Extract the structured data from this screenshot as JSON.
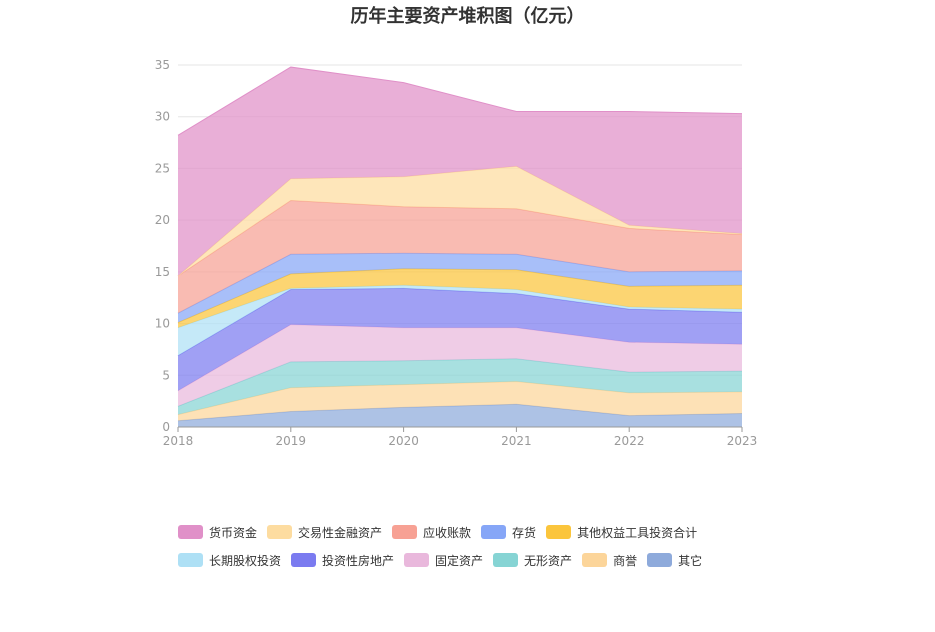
{
  "chart_data": {
    "type": "area",
    "title": "历年主要资产堆积图（亿元）",
    "stacked": true,
    "x": [
      "2018",
      "2019",
      "2020",
      "2021",
      "2022",
      "2023"
    ],
    "ylim": [
      0,
      35
    ],
    "yticks": [
      0,
      5,
      10,
      15,
      20,
      25,
      30,
      35
    ],
    "grid": true,
    "legend_position": "bottom",
    "series": [
      {
        "name": "其它",
        "color": "#8eaadb",
        "values": [
          0.6,
          1.5,
          1.9,
          2.2,
          1.1,
          1.3
        ]
      },
      {
        "name": "商誉",
        "color": "#fcd59a",
        "values": [
          0.6,
          2.3,
          2.2,
          2.2,
          2.2,
          2.1
        ]
      },
      {
        "name": "无形资产",
        "color": "#86d4d4",
        "values": [
          0.8,
          2.5,
          2.3,
          2.2,
          2.0,
          2.0
        ]
      },
      {
        "name": "固定资产",
        "color": "#e9b8dc",
        "values": [
          1.5,
          3.6,
          3.2,
          3.0,
          2.9,
          2.6
        ]
      },
      {
        "name": "投资性房地产",
        "color": "#7b7bf0",
        "values": [
          3.4,
          3.4,
          3.8,
          3.3,
          3.2,
          3.1
        ]
      },
      {
        "name": "长期股权投资",
        "color": "#aee0f5",
        "values": [
          2.7,
          0.1,
          0.3,
          0.4,
          0.2,
          0.3
        ]
      },
      {
        "name": "其他权益工具投资合计",
        "color": "#fbc53c",
        "values": [
          0.5,
          1.4,
          1.6,
          1.9,
          2.0,
          2.3
        ]
      },
      {
        "name": "存货",
        "color": "#86a6f7",
        "values": [
          0.9,
          1.9,
          1.5,
          1.5,
          1.4,
          1.4
        ]
      },
      {
        "name": "应收账款",
        "color": "#f7a194",
        "values": [
          3.6,
          5.2,
          4.5,
          4.4,
          4.2,
          3.5
        ]
      },
      {
        "name": "交易性金融资产",
        "color": "#fddca0",
        "values": [
          0.0,
          2.1,
          2.9,
          4.1,
          0.3,
          0.1
        ]
      },
      {
        "name": "货币资金",
        "color": "#e090c8",
        "values": [
          13.6,
          10.8,
          9.1,
          5.3,
          11.0,
          11.6
        ]
      }
    ],
    "legend_order": [
      "货币资金",
      "交易性金融资产",
      "应收账款",
      "存货",
      "其他权益工具投资合计",
      "长期股权投资",
      "投资性房地产",
      "固定资产",
      "无形资产",
      "商誉",
      "其它"
    ]
  }
}
